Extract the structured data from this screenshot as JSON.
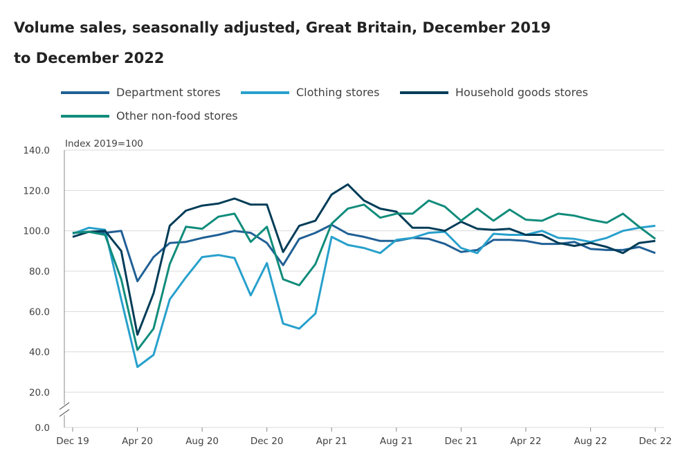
{
  "chart_data": {
    "type": "line",
    "title": "Volume sales, seasonally adjusted, Great Britain, December 2019 to December 2022",
    "ylabel": "Index 2019=100",
    "ylim": [
      0,
      140
    ],
    "y_ticks": [
      "0.0",
      "20.0",
      "40.0",
      "60.0",
      "80.0",
      "100.0",
      "120.0",
      "140.0"
    ],
    "x_ticks": [
      "Dec 19",
      "Apr 20",
      "Aug 20",
      "Dec 20",
      "Apr 21",
      "Aug 21",
      "Dec 21",
      "Apr 22",
      "Aug 22",
      "Dec 22"
    ],
    "x": [
      "Dec 19",
      "Jan 20",
      "Feb 20",
      "Mar 20",
      "Apr 20",
      "May 20",
      "Jun 20",
      "Jul 20",
      "Aug 20",
      "Sep 20",
      "Oct 20",
      "Nov 20",
      "Dec 20",
      "Jan 21",
      "Feb 21",
      "Mar 21",
      "Apr 21",
      "May 21",
      "Jun 21",
      "Jul 21",
      "Aug 21",
      "Sep 21",
      "Oct 21",
      "Nov 21",
      "Dec 21",
      "Jan 22",
      "Feb 22",
      "Mar 22",
      "Apr 22",
      "May 22",
      "Jun 22",
      "Jul 22",
      "Aug 22",
      "Sep 22",
      "Oct 22",
      "Nov 22",
      "Dec 22"
    ],
    "grid": true,
    "legend_position": "top",
    "axis_break": true,
    "series": [
      {
        "name": "Department stores",
        "color": "#206095",
        "values": [
          99,
          99.5,
          99,
          100,
          75,
          87,
          94,
          94.5,
          96.5,
          98,
          100,
          99,
          94,
          83,
          96,
          99,
          103,
          98.5,
          97,
          95,
          95,
          96.5,
          96,
          93.5,
          89.5,
          90.5,
          95.5,
          95.5,
          95,
          93.5,
          93.5,
          94.5,
          91,
          90.5,
          90.5,
          92,
          89
        ]
      },
      {
        "name": "Clothing stores",
        "color": "#27a0cc",
        "values": [
          98.5,
          101.5,
          100.5,
          66,
          32.5,
          38.5,
          66,
          77,
          87,
          88,
          86.5,
          68,
          84,
          54,
          51.5,
          59,
          97,
          93,
          91.5,
          89,
          95.5,
          96.5,
          99,
          99.5,
          91.5,
          89,
          98.5,
          98,
          98,
          100,
          96.5,
          96,
          94.5,
          96.5,
          100,
          101.5,
          102.5
        ]
      },
      {
        "name": "Household goods stores",
        "color": "#003c57",
        "values": [
          97,
          99.5,
          100,
          90,
          48.5,
          69,
          102.5,
          110,
          112.5,
          113.5,
          116,
          113,
          113,
          89.5,
          102.5,
          105,
          118,
          123,
          115,
          111,
          109.5,
          101.5,
          101.5,
          100,
          104.5,
          101,
          100.5,
          101,
          98,
          98,
          94,
          92.5,
          94,
          92,
          89,
          94,
          95
        ]
      },
      {
        "name": "Other non-food stores",
        "color": "#118c7b",
        "values": [
          99,
          99.5,
          98,
          76,
          41,
          51.5,
          83.5,
          102,
          101,
          107,
          108.5,
          94.5,
          102,
          76,
          73,
          83.5,
          103.5,
          111,
          113,
          106.5,
          108.5,
          108.5,
          115,
          112,
          105,
          111,
          105,
          110.5,
          105.5,
          105,
          108.5,
          107.5,
          105.5,
          104,
          108.5,
          102,
          96
        ]
      }
    ]
  }
}
